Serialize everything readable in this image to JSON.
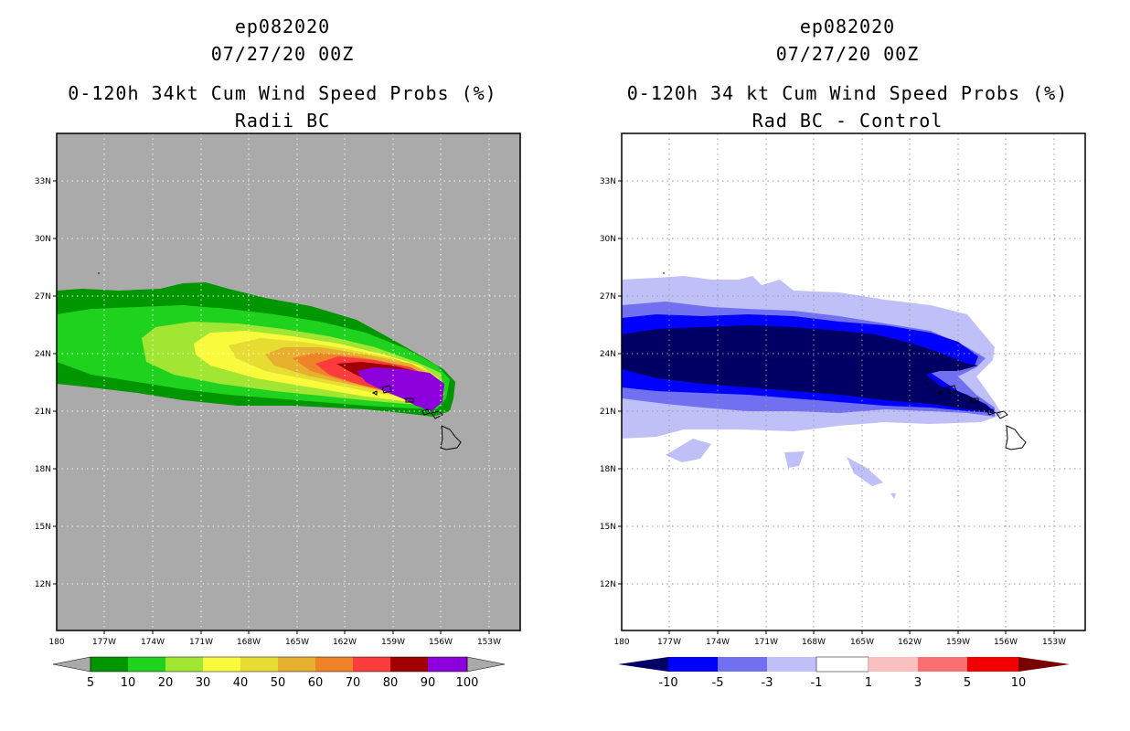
{
  "left": {
    "title_line1": "ep082020",
    "title_line2": "07/27/20 00Z",
    "title_line3": "0-120h 34kt Cum Wind Speed Probs (%)",
    "title_line4": "Radii BC",
    "lat_labels": [
      "33N",
      "30N",
      "27N",
      "24N",
      "21N",
      "18N",
      "15N",
      "12N"
    ],
    "lon_labels": [
      "180",
      "177W",
      "174W",
      "171W",
      "168W",
      "165W",
      "162W",
      "159W",
      "156W",
      "153W"
    ],
    "colorbar": {
      "colors": [
        "#009600",
        "#1ed21e",
        "#a0e632",
        "#fafa3c",
        "#e6dc32",
        "#e6af2d",
        "#f08228",
        "#fa3c3c",
        "#a00000",
        "#8c00dc"
      ],
      "labels": [
        "5",
        "10",
        "20",
        "30",
        "40",
        "50",
        "60",
        "70",
        "80",
        "90",
        "100"
      ],
      "end_color": "#aaaaaa"
    },
    "background_color": "#aaaaaa"
  },
  "right": {
    "title_line1": "ep082020",
    "title_line2": "07/27/20 00Z",
    "title_line3": "0-120h 34 kt Cum Wind Speed Probs (%)",
    "title_line4": "Rad BC - Control",
    "lat_labels": [
      "33N",
      "30N",
      "27N",
      "24N",
      "21N",
      "18N",
      "15N",
      "12N"
    ],
    "lon_labels": [
      "180",
      "177W",
      "174W",
      "171W",
      "168W",
      "165W",
      "162W",
      "159W",
      "156W",
      "153W"
    ],
    "colorbar": {
      "low_end": "#000064",
      "high_end": "#780000",
      "colors": [
        "#0000ff",
        "#7070f0",
        "#c0c0f8",
        "#ffffff",
        "#fac0c0",
        "#fa7070",
        "#f00000"
      ],
      "labels": [
        "-10",
        "-5",
        "-3",
        "-1",
        "1",
        "3",
        "5",
        "10"
      ]
    }
  }
}
